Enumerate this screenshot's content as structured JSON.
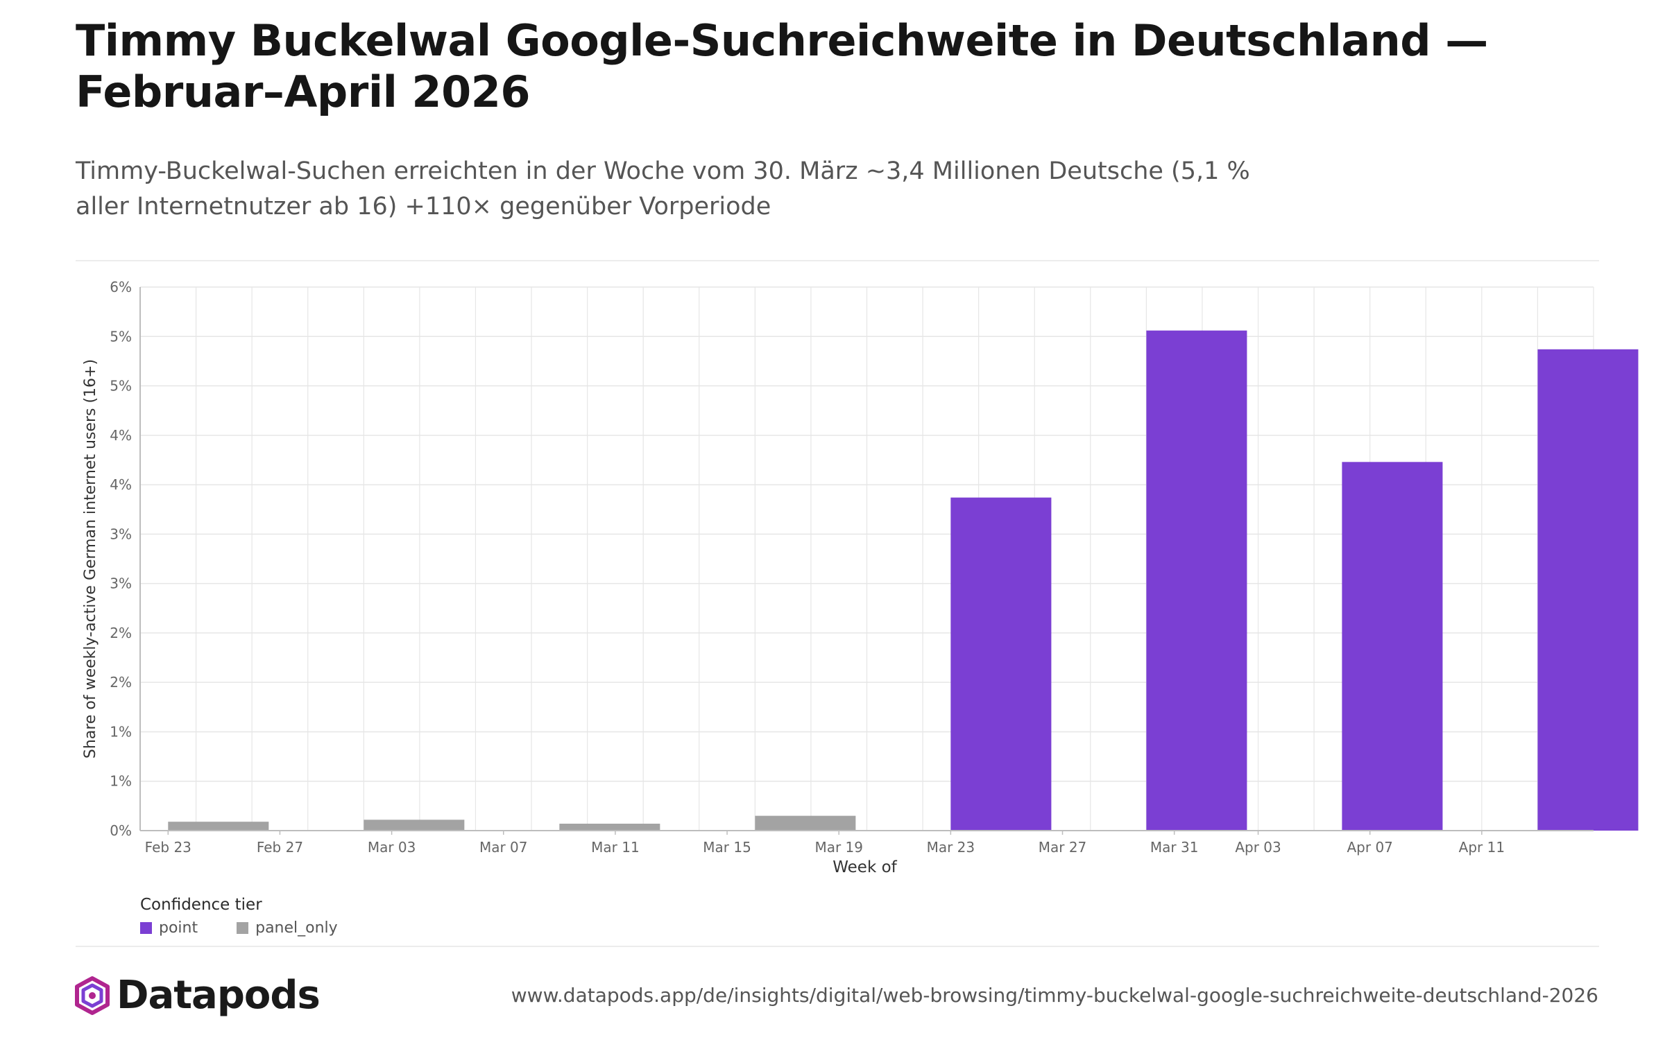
{
  "title": "Timmy Buckelwal Google-Suchreichweite in Deutschland — Februar–April 2026",
  "subtitle": "Timmy-Buckelwal-Suchen erreichten in der Woche vom 30. März ~3,4 Millionen Deutsche (5,1 % aller Internetnutzer ab 16) +110× gegenüber Vorperiode",
  "brand": {
    "name": "Datapods",
    "icon": "datapods-logo-icon"
  },
  "url": "www.datapods.app/de/insights/digital/web-browsing/timmy-buckelwal-google-suchreichweite-deutschland-2026",
  "colors": {
    "point": "#7b3fd3",
    "panel_only": "#a3a3a3",
    "grid": "#e6e6e6",
    "axis": "#bdbdbd"
  },
  "chart_data": {
    "type": "bar",
    "xlabel": "Week of",
    "ylabel": "Share of weekly-active German internet users (16+)",
    "ylim": [
      0,
      5.5
    ],
    "yticks": [
      {
        "value": 0,
        "label": "0%"
      },
      {
        "value": 0.5,
        "label": "1%"
      },
      {
        "value": 1.0,
        "label": "1%"
      },
      {
        "value": 1.5,
        "label": "2%"
      },
      {
        "value": 2.0,
        "label": "2%"
      },
      {
        "value": 2.5,
        "label": "3%"
      },
      {
        "value": 3.0,
        "label": "3%"
      },
      {
        "value": 3.5,
        "label": "4%"
      },
      {
        "value": 4.0,
        "label": "4%"
      },
      {
        "value": 4.5,
        "label": "5%"
      },
      {
        "value": 5.0,
        "label": "5%"
      },
      {
        "value": 5.5,
        "label": "6%"
      }
    ],
    "x_range": [
      "2026-02-22",
      "2026-04-15"
    ],
    "xticks": [
      {
        "date": "2026-02-23",
        "label": "Feb 23"
      },
      {
        "date": "2026-02-27",
        "label": "Feb 27"
      },
      {
        "date": "2026-03-03",
        "label": "Mar 03"
      },
      {
        "date": "2026-03-07",
        "label": "Mar 07"
      },
      {
        "date": "2026-03-11",
        "label": "Mar 11"
      },
      {
        "date": "2026-03-15",
        "label": "Mar 15"
      },
      {
        "date": "2026-03-19",
        "label": "Mar 19"
      },
      {
        "date": "2026-03-23",
        "label": "Mar 23"
      },
      {
        "date": "2026-03-27",
        "label": "Mar 27"
      },
      {
        "date": "2026-03-31",
        "label": "Mar 31"
      },
      {
        "date": "2026-04-03",
        "label": "Apr 03"
      },
      {
        "date": "2026-04-07",
        "label": "Apr 07"
      },
      {
        "date": "2026-04-11",
        "label": "Apr 11"
      }
    ],
    "legend": {
      "title": "Confidence tier",
      "placement": "bottom-left",
      "items": [
        {
          "key": "point",
          "label": "point"
        },
        {
          "key": "panel_only",
          "label": "panel_only"
        }
      ]
    },
    "grid": true,
    "bars": [
      {
        "week_of": "2026-02-23",
        "value": 0.09,
        "tier": "panel_only"
      },
      {
        "week_of": "2026-03-02",
        "value": 0.11,
        "tier": "panel_only"
      },
      {
        "week_of": "2026-03-09",
        "value": 0.07,
        "tier": "panel_only"
      },
      {
        "week_of": "2026-03-16",
        "value": 0.15,
        "tier": "panel_only"
      },
      {
        "week_of": "2026-03-23",
        "value": 3.37,
        "tier": "point"
      },
      {
        "week_of": "2026-03-30",
        "value": 5.06,
        "tier": "point"
      },
      {
        "week_of": "2026-04-06",
        "value": 3.73,
        "tier": "point"
      },
      {
        "week_of": "2026-04-13",
        "value": 4.87,
        "tier": "point"
      }
    ]
  }
}
